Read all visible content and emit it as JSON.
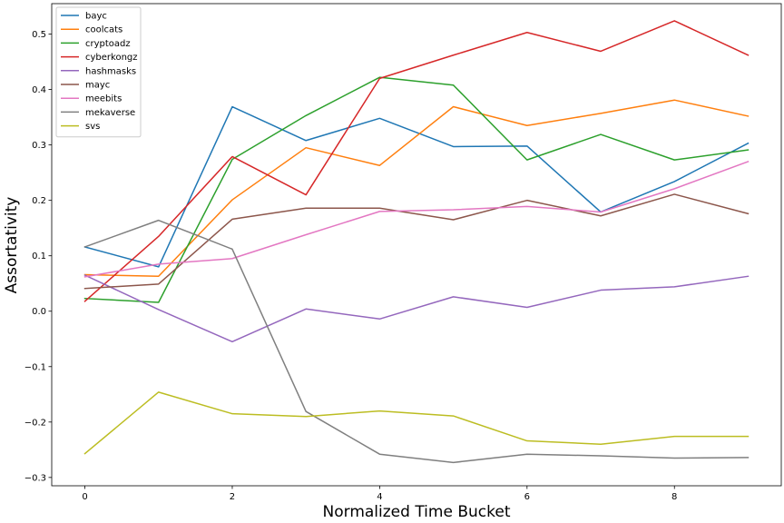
{
  "chart_data": {
    "type": "line",
    "title": "",
    "xlabel": "Normalized Time Bucket",
    "ylabel": "Assortativity",
    "x": [
      0,
      1,
      2,
      3,
      4,
      5,
      6,
      7,
      8,
      9
    ],
    "xlim": [
      -0.45,
      9.45
    ],
    "ylim": [
      -0.315,
      0.555
    ],
    "xticks": [
      0,
      2,
      4,
      6,
      8
    ],
    "xtick_labels": [
      "0",
      "2",
      "4",
      "6",
      "8"
    ],
    "yticks": [
      -0.3,
      -0.2,
      -0.1,
      0.0,
      0.1,
      0.2,
      0.3,
      0.4,
      0.5
    ],
    "ytick_labels": [
      "−0.3",
      "−0.2",
      "−0.1",
      "0.0",
      "0.1",
      "0.2",
      "0.3",
      "0.4",
      "0.5"
    ],
    "grid": false,
    "legend_position": "top-left",
    "series": [
      {
        "name": "bayc",
        "color": "#1f77b4",
        "values": [
          0.116,
          0.08,
          0.369,
          0.308,
          0.348,
          0.297,
          0.298,
          0.179,
          0.234,
          0.303
        ]
      },
      {
        "name": "coolcats",
        "color": "#ff7f0e",
        "values": [
          0.066,
          0.063,
          0.201,
          0.295,
          0.263,
          0.369,
          0.335,
          0.357,
          0.381,
          0.352
        ]
      },
      {
        "name": "cryptoadz",
        "color": "#2ca02c",
        "values": [
          0.023,
          0.016,
          0.274,
          0.353,
          0.422,
          0.408,
          0.273,
          0.319,
          0.273,
          0.291
        ]
      },
      {
        "name": "cyberkongz",
        "color": "#d62728",
        "values": [
          0.018,
          0.135,
          0.279,
          0.21,
          0.42,
          0.462,
          0.503,
          0.469,
          0.524,
          0.462
        ]
      },
      {
        "name": "hashmasks",
        "color": "#9467bd",
        "values": [
          0.065,
          0.003,
          -0.055,
          0.004,
          -0.014,
          0.026,
          0.007,
          0.038,
          0.044,
          0.063
        ]
      },
      {
        "name": "mayc",
        "color": "#8c564b",
        "values": [
          0.041,
          0.049,
          0.166,
          0.186,
          0.186,
          0.165,
          0.2,
          0.172,
          0.211,
          0.176
        ]
      },
      {
        "name": "meebits",
        "color": "#e377c2",
        "values": [
          0.062,
          0.085,
          0.095,
          0.138,
          0.18,
          0.183,
          0.189,
          0.179,
          0.221,
          0.27
        ]
      },
      {
        "name": "mekaverse",
        "color": "#7f7f7f",
        "values": [
          0.116,
          0.164,
          0.112,
          -0.181,
          -0.258,
          -0.273,
          -0.258,
          -0.261,
          -0.265,
          -0.264
        ]
      },
      {
        "name": "svs",
        "color": "#bcbd22",
        "values": [
          -0.257,
          -0.146,
          -0.185,
          -0.19,
          -0.18,
          -0.189,
          -0.234,
          -0.24,
          -0.226,
          -0.226
        ]
      }
    ]
  }
}
